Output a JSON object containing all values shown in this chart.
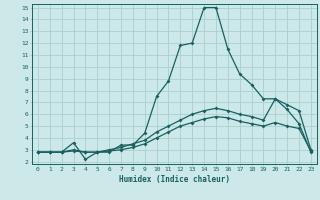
{
  "title": "",
  "xlabel": "Humidex (Indice chaleur)",
  "xlim": [
    -0.5,
    23.5
  ],
  "ylim": [
    1.8,
    15.3
  ],
  "xticks": [
    0,
    1,
    2,
    3,
    4,
    5,
    6,
    7,
    8,
    9,
    10,
    11,
    12,
    13,
    14,
    15,
    16,
    17,
    18,
    19,
    20,
    21,
    22,
    23
  ],
  "yticks": [
    2,
    3,
    4,
    5,
    6,
    7,
    8,
    9,
    10,
    11,
    12,
    13,
    14,
    15
  ],
  "bg_color": "#cce8e8",
  "grid_color": "#aacfcf",
  "line_color": "#1a6060",
  "line1_x": [
    0,
    1,
    2,
    3,
    4,
    5,
    6,
    7,
    8,
    9,
    10,
    11,
    12,
    13,
    14,
    15,
    16,
    17,
    18,
    19,
    20,
    21,
    22,
    23
  ],
  "line1_y": [
    2.8,
    2.8,
    2.8,
    3.6,
    2.2,
    2.8,
    2.8,
    3.4,
    3.4,
    4.4,
    7.5,
    8.8,
    11.8,
    12.0,
    15.0,
    15.0,
    11.5,
    9.4,
    8.5,
    7.3,
    7.3,
    6.4,
    5.2,
    2.8
  ],
  "line2_x": [
    0,
    1,
    2,
    3,
    4,
    5,
    6,
    7,
    8,
    9,
    10,
    11,
    12,
    13,
    14,
    15,
    16,
    17,
    18,
    19,
    20,
    21,
    22,
    23
  ],
  "line2_y": [
    2.8,
    2.8,
    2.8,
    3.0,
    2.8,
    2.8,
    3.0,
    3.2,
    3.5,
    3.8,
    4.5,
    5.0,
    5.5,
    6.0,
    6.3,
    6.5,
    6.3,
    6.0,
    5.8,
    5.5,
    7.3,
    6.8,
    6.3,
    3.0
  ],
  "line3_x": [
    0,
    1,
    2,
    3,
    4,
    5,
    6,
    7,
    8,
    9,
    10,
    11,
    12,
    13,
    14,
    15,
    16,
    17,
    18,
    19,
    20,
    21,
    22,
    23
  ],
  "line3_y": [
    2.8,
    2.8,
    2.8,
    2.9,
    2.8,
    2.8,
    2.9,
    3.0,
    3.2,
    3.5,
    4.0,
    4.5,
    5.0,
    5.3,
    5.6,
    5.8,
    5.7,
    5.4,
    5.2,
    5.0,
    5.3,
    5.0,
    4.8,
    2.9
  ]
}
